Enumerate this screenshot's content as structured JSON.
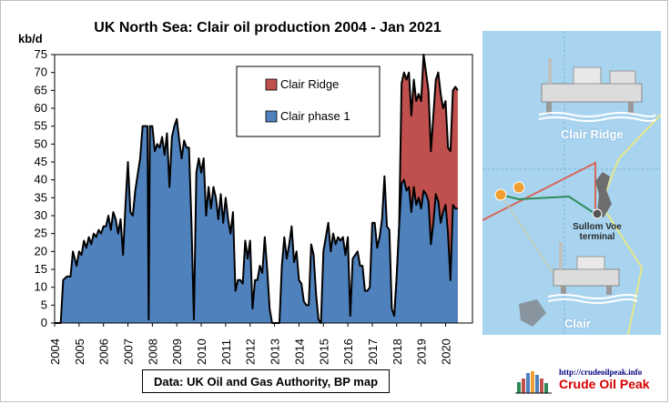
{
  "chart_data": {
    "type": "area",
    "title": "UK North Sea: Clair oil production 2004 - Jan 2021",
    "ylabel": "kb/d",
    "ylim": [
      0,
      75
    ],
    "yticks": [
      0,
      5,
      10,
      15,
      20,
      25,
      30,
      35,
      40,
      45,
      50,
      55,
      60,
      65,
      70,
      75
    ],
    "xlim": [
      2004,
      2021.1
    ],
    "xticks": [
      "2004",
      "2005",
      "2006",
      "2007",
      "2008",
      "2009",
      "2010",
      "2011",
      "2012",
      "2013",
      "2014",
      "2015",
      "2016",
      "2017",
      "2018",
      "2019",
      "2020"
    ],
    "legend_position": "top-right",
    "series": [
      {
        "name": "Clair phase 1",
        "color": "#4f81bd",
        "points": [
          [
            2004.0,
            0
          ],
          [
            2004.25,
            0
          ],
          [
            2004.35,
            12
          ],
          [
            2004.5,
            13
          ],
          [
            2004.65,
            13
          ],
          [
            2004.75,
            20
          ],
          [
            2004.9,
            16
          ],
          [
            2005.0,
            20
          ],
          [
            2005.1,
            19
          ],
          [
            2005.2,
            23
          ],
          [
            2005.3,
            21
          ],
          [
            2005.4,
            24
          ],
          [
            2005.5,
            22
          ],
          [
            2005.6,
            25
          ],
          [
            2005.7,
            24
          ],
          [
            2005.8,
            26
          ],
          [
            2005.9,
            25
          ],
          [
            2006.0,
            27
          ],
          [
            2006.1,
            27
          ],
          [
            2006.2,
            30
          ],
          [
            2006.3,
            26
          ],
          [
            2006.4,
            31
          ],
          [
            2006.5,
            29
          ],
          [
            2006.6,
            25
          ],
          [
            2006.7,
            29
          ],
          [
            2006.8,
            19
          ],
          [
            2006.9,
            33
          ],
          [
            2007.0,
            45
          ],
          [
            2007.1,
            31
          ],
          [
            2007.2,
            30
          ],
          [
            2007.3,
            37
          ],
          [
            2007.5,
            46
          ],
          [
            2007.6,
            55
          ],
          [
            2007.7,
            55
          ],
          [
            2007.8,
            55
          ],
          [
            2007.85,
            1
          ],
          [
            2007.9,
            55
          ],
          [
            2008.0,
            55
          ],
          [
            2008.1,
            48
          ],
          [
            2008.2,
            50
          ],
          [
            2008.3,
            49
          ],
          [
            2008.4,
            52
          ],
          [
            2008.5,
            47
          ],
          [
            2008.6,
            53
          ],
          [
            2008.7,
            38
          ],
          [
            2008.8,
            52
          ],
          [
            2008.9,
            55
          ],
          [
            2009.0,
            57
          ],
          [
            2009.1,
            51
          ],
          [
            2009.2,
            46
          ],
          [
            2009.3,
            51
          ],
          [
            2009.4,
            49
          ],
          [
            2009.5,
            49
          ],
          [
            2009.6,
            28
          ],
          [
            2009.7,
            1
          ],
          [
            2009.8,
            42
          ],
          [
            2009.9,
            46
          ],
          [
            2010.0,
            42
          ],
          [
            2010.1,
            46
          ],
          [
            2010.2,
            30
          ],
          [
            2010.3,
            38
          ],
          [
            2010.4,
            32
          ],
          [
            2010.5,
            38
          ],
          [
            2010.6,
            35
          ],
          [
            2010.7,
            29
          ],
          [
            2010.8,
            36
          ],
          [
            2010.9,
            28
          ],
          [
            2011.0,
            35
          ],
          [
            2011.1,
            29
          ],
          [
            2011.2,
            25
          ],
          [
            2011.3,
            31
          ],
          [
            2011.4,
            9
          ],
          [
            2011.5,
            12
          ],
          [
            2011.6,
            12
          ],
          [
            2011.7,
            11
          ],
          [
            2011.8,
            23
          ],
          [
            2011.9,
            18
          ],
          [
            2012.0,
            23
          ],
          [
            2012.1,
            4
          ],
          [
            2012.2,
            12
          ],
          [
            2012.3,
            12
          ],
          [
            2012.4,
            16
          ],
          [
            2012.5,
            14
          ],
          [
            2012.6,
            24
          ],
          [
            2012.7,
            15
          ],
          [
            2012.8,
            4
          ],
          [
            2012.9,
            0
          ],
          [
            2013.0,
            0
          ],
          [
            2013.1,
            0
          ],
          [
            2013.2,
            0
          ],
          [
            2013.3,
            16
          ],
          [
            2013.4,
            24
          ],
          [
            2013.5,
            18
          ],
          [
            2013.6,
            22
          ],
          [
            2013.7,
            27
          ],
          [
            2013.8,
            17
          ],
          [
            2013.9,
            20
          ],
          [
            2014.0,
            12
          ],
          [
            2014.1,
            11
          ],
          [
            2014.2,
            6
          ],
          [
            2014.3,
            5
          ],
          [
            2014.4,
            5
          ],
          [
            2014.5,
            22
          ],
          [
            2014.6,
            19
          ],
          [
            2014.7,
            8
          ],
          [
            2014.8,
            1
          ],
          [
            2014.9,
            0
          ],
          [
            2015.0,
            20
          ],
          [
            2015.1,
            24
          ],
          [
            2015.2,
            28
          ],
          [
            2015.3,
            20
          ],
          [
            2015.4,
            25
          ],
          [
            2015.5,
            22
          ],
          [
            2015.6,
            24
          ],
          [
            2015.7,
            23
          ],
          [
            2015.8,
            24
          ],
          [
            2015.9,
            19
          ],
          [
            2016.0,
            24
          ],
          [
            2016.1,
            2
          ],
          [
            2016.2,
            18
          ],
          [
            2016.3,
            19
          ],
          [
            2016.4,
            20
          ],
          [
            2016.5,
            16
          ],
          [
            2016.6,
            16
          ],
          [
            2016.7,
            9
          ],
          [
            2016.8,
            9
          ],
          [
            2016.9,
            10
          ],
          [
            2017.0,
            28
          ],
          [
            2017.1,
            28
          ],
          [
            2017.2,
            21
          ],
          [
            2017.3,
            24
          ],
          [
            2017.4,
            29
          ],
          [
            2017.5,
            41
          ],
          [
            2017.6,
            27
          ],
          [
            2017.7,
            26
          ],
          [
            2017.8,
            4
          ],
          [
            2017.9,
            2
          ],
          [
            2018.0,
            13
          ],
          [
            2018.1,
            27
          ],
          [
            2018.2,
            39
          ],
          [
            2018.3,
            40
          ],
          [
            2018.4,
            37
          ],
          [
            2018.5,
            38
          ],
          [
            2018.6,
            31
          ],
          [
            2018.7,
            38
          ],
          [
            2018.8,
            33
          ],
          [
            2018.9,
            35
          ],
          [
            2019.0,
            32
          ],
          [
            2019.1,
            37
          ],
          [
            2019.2,
            36
          ],
          [
            2019.3,
            34
          ],
          [
            2019.4,
            22
          ],
          [
            2019.5,
            28
          ],
          [
            2019.6,
            36
          ],
          [
            2019.7,
            34
          ],
          [
            2019.8,
            28
          ],
          [
            2019.9,
            31
          ],
          [
            2020.0,
            33
          ],
          [
            2020.1,
            25
          ],
          [
            2020.2,
            12
          ],
          [
            2020.3,
            33
          ],
          [
            2020.4,
            32
          ],
          [
            2020.5,
            32
          ]
        ]
      },
      {
        "name": "Clair Ridge",
        "color": "#c0504d",
        "points": [
          [
            2017.9,
            2
          ],
          [
            2018.0,
            13
          ],
          [
            2018.1,
            27
          ],
          [
            2018.2,
            67
          ],
          [
            2018.3,
            70
          ],
          [
            2018.4,
            68
          ],
          [
            2018.5,
            70
          ],
          [
            2018.6,
            58
          ],
          [
            2018.7,
            68
          ],
          [
            2018.8,
            62
          ],
          [
            2018.9,
            64
          ],
          [
            2019.0,
            62
          ],
          [
            2019.1,
            75
          ],
          [
            2019.2,
            70
          ],
          [
            2019.3,
            65
          ],
          [
            2019.4,
            48
          ],
          [
            2019.5,
            58
          ],
          [
            2019.6,
            68
          ],
          [
            2019.7,
            70
          ],
          [
            2019.8,
            64
          ],
          [
            2019.9,
            60
          ],
          [
            2020.0,
            62
          ],
          [
            2020.1,
            49
          ],
          [
            2020.2,
            48
          ],
          [
            2020.3,
            65
          ],
          [
            2020.4,
            66
          ],
          [
            2020.5,
            65
          ]
        ]
      }
    ],
    "source_note": "Data: UK Oil and Gas Authority, BP map"
  },
  "map": {
    "background": "#a8d4f0",
    "label_ridge": "Clair Ridge",
    "label_clair": "Clair",
    "terminal_label": "Sullom Voe terminal"
  },
  "logo": {
    "url": "http://crudeoilpeak.info",
    "name": "Crude Oil Peak"
  }
}
